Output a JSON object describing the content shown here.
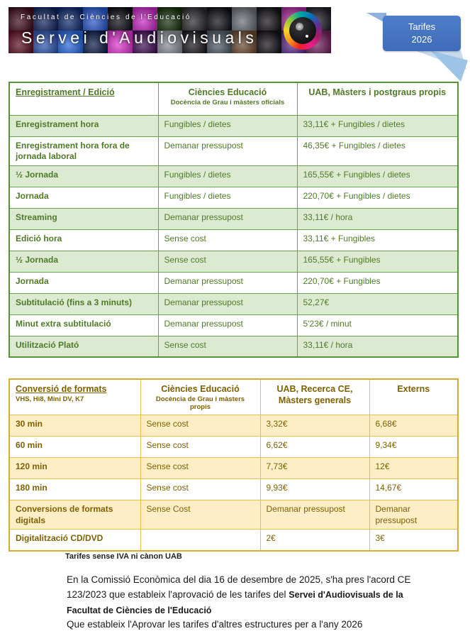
{
  "header": {
    "banner": {
      "line1": "Facultat de Ciències de l'Educació",
      "line2": "Servei d'Audiovisuals",
      "lens_icon": "camera-lens-color-wheel-icon",
      "tiles": {
        "row1": [
          "#3f0d1c",
          "#13235c",
          "#0f2a6e",
          "#2857c8",
          "#0a0a12",
          "#c428c0",
          "#15300c",
          "#2b2b31",
          "#101016",
          "#6a7078",
          "#141219",
          "#a82a9a",
          "#221f28"
        ],
        "row2": [
          "#5c1022",
          "#2f54b0",
          "#2a6ae0",
          "#0d1c48",
          "#e038d0",
          "#431058",
          "#8a8f99",
          "#1b191f",
          "#4f5a66",
          "#6b4a31",
          "#131118",
          "#5a2a8c",
          "#73205f"
        ]
      }
    },
    "badge": {
      "line1": "Tarifes",
      "line2": "2026",
      "color": "#4472c4",
      "triangle_colors": [
        "#8fb2dd",
        "#c7daf0",
        "#9dc3e6"
      ]
    }
  },
  "tables": [
    {
      "name": "enregistrament-edicio",
      "accent": "#68a449",
      "band_color": "#dcead2",
      "text_color": "#4e7a28",
      "columns": [
        {
          "title": "Enregistrament / Edició",
          "subtitle": ""
        },
        {
          "title": "Ciències Educació",
          "subtitle": "Docència de Grau i màsters oficials"
        },
        {
          "title": "UAB, Màsters i postgraus propis",
          "subtitle": ""
        }
      ],
      "rows": [
        [
          "Enregistrament hora",
          "Fungibles / dietes",
          "33,11€ + Fungibles / dietes"
        ],
        [
          "Enregistrament hora fora de jornada laboral",
          "Demanar pressupost",
          "46,35€ + Fungibles / dietes"
        ],
        [
          "½ Jornada",
          "Fungibles / dietes",
          "165,55€ + Fungibles / dietes"
        ],
        [
          "Jornada",
          "Fungibles / dietes",
          "220,70€ + Fungibles / dietes"
        ],
        [
          "Streaming",
          "Demanar pressupost",
          "33,11€ / hora"
        ],
        [
          "Edició hora",
          "Sense cost",
          "33,11€ + Fungibles"
        ],
        [
          "½ Jornada",
          "Sense cost",
          "165,55€ + Fungibles"
        ],
        [
          "Jornada",
          "Demanar pressupost",
          "220,70€ + Fungibles"
        ],
        [
          "Subtitulació (fins a 3 minuts)",
          "Demanar pressupost",
          "52,27€"
        ],
        [
          "Minut extra subtitulació",
          "Demanar pressupost",
          "5'23€ / minut"
        ],
        [
          "Utilització Plató",
          "Sense cost",
          "33,11€ / hora"
        ]
      ]
    },
    {
      "name": "conversio-de-formats",
      "accent": "#e7c04c",
      "band_color": "#fdeec6",
      "text_color": "#7e6000",
      "columns": [
        {
          "title": "Conversió de formats",
          "subtitle": "VHS, Hi8, Mini DV, K7"
        },
        {
          "title": "Ciències Educació",
          "subtitle": "Docència de Grau i màsters propis"
        },
        {
          "title": "UAB, Recerca CE, Màsters generals",
          "subtitle": ""
        },
        {
          "title": "Externs",
          "subtitle": ""
        }
      ],
      "rows": [
        [
          "30 min",
          "Sense cost",
          "3,32€",
          "6,68€"
        ],
        [
          "60 min",
          "Sense cost",
          "6,62€",
          "9,34€"
        ],
        [
          "120 min",
          "Sense cost",
          "7,73€",
          "12€"
        ],
        [
          "180 min",
          "Sense cost",
          "9,93€",
          "14,67€"
        ],
        [
          "Conversions de formats digitals",
          "Sense Cost",
          "Demanar pressupost",
          "Demanar pressupost"
        ],
        [
          "Digitalització CD/DVD",
          "",
          "2€",
          "3€"
        ]
      ]
    }
  ],
  "footer": {
    "note": "Tarifes sense IVA ni cànon UAB",
    "paragraph_normal": "En la Comissió Econòmica del dia 16 de desembre de 2025, s'ha pres l'acord CE 123/2023 que estableix l'aprovació de les tarifes del ",
    "paragraph_bold": "Servei d'Audiovisuals de la Facultat de Ciències de l'Educació",
    "paragraph2": "Que estableix l'Aprovar les tarifes d'altres estructures per a l'any 2026"
  }
}
